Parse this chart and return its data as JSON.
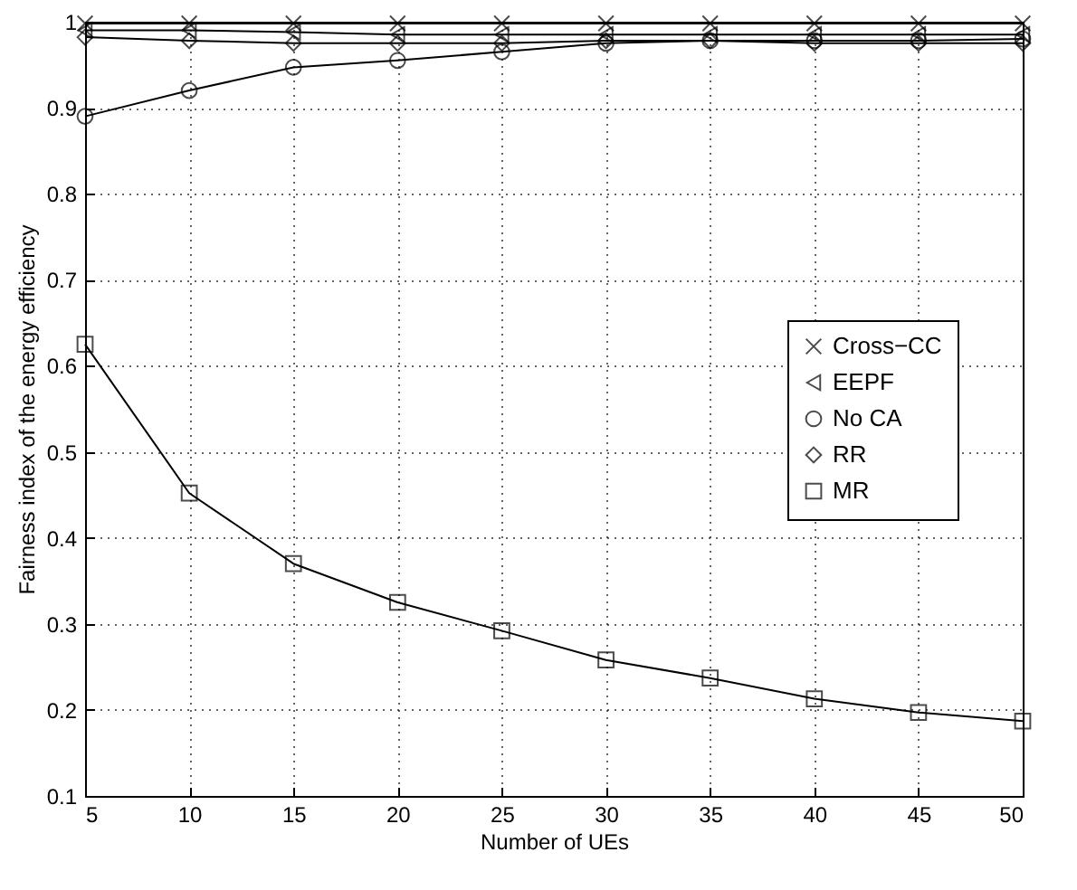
{
  "chart_data": {
    "type": "line",
    "xlabel": "Number of UEs",
    "ylabel": "Fairness index of the energy efficiency",
    "x": [
      5,
      10,
      15,
      20,
      25,
      30,
      35,
      40,
      45,
      50
    ],
    "series": [
      {
        "name": "Cross−CC",
        "color": "#000000",
        "marker": "cross",
        "values": [
          0.998,
          0.998,
          0.998,
          0.998,
          0.998,
          0.998,
          0.998,
          0.998,
          0.998,
          0.998
        ]
      },
      {
        "name": "EEPF",
        "color": "#000000",
        "marker": "triangle",
        "values": [
          0.99,
          0.99,
          0.988,
          0.985,
          0.985,
          0.985,
          0.985,
          0.985,
          0.985,
          0.985
        ]
      },
      {
        "name": "No CA",
        "color": "#000000",
        "marker": "circle",
        "values": [
          0.89,
          0.92,
          0.947,
          0.955,
          0.965,
          0.975,
          0.978,
          0.978,
          0.978,
          0.98
        ]
      },
      {
        "name": "RR",
        "color": "#000000",
        "marker": "diamond",
        "values": [
          0.982,
          0.978,
          0.975,
          0.975,
          0.975,
          0.978,
          0.978,
          0.975,
          0.975,
          0.975
        ]
      },
      {
        "name": "MR",
        "color": "#000000",
        "marker": "square",
        "values": [
          0.625,
          0.452,
          0.37,
          0.325,
          0.292,
          0.258,
          0.237,
          0.213,
          0.197,
          0.187
        ]
      }
    ],
    "xlim": [
      5,
      50
    ],
    "xticks": [
      5,
      10,
      15,
      20,
      25,
      30,
      35,
      40,
      45,
      50
    ],
    "ylim": [
      0.1,
      1
    ],
    "yticks": [
      0.1,
      0.2,
      0.3,
      0.4,
      0.5,
      0.6,
      0.7,
      0.8,
      0.9,
      {
        "value": 1,
        "label": "1"
      }
    ],
    "grid": true,
    "legend": "right",
    "line_style": "solid"
  }
}
